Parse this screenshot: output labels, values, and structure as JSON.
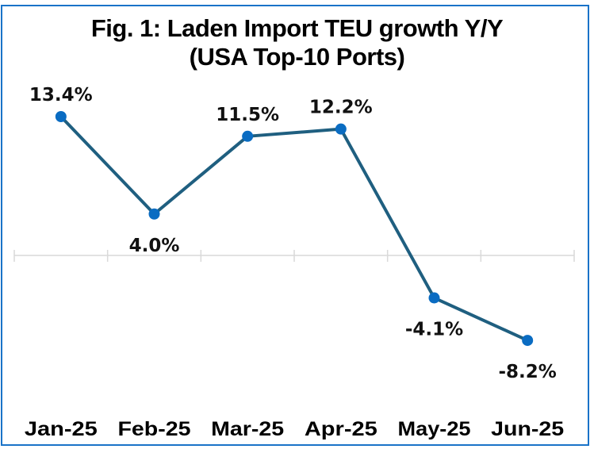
{
  "chart_data": {
    "type": "line",
    "title": "Fig. 1: Laden Import TEU growth Y/Y",
    "subtitle": "(USA Top-10 Ports)",
    "categories": [
      "Jan-25",
      "Feb-25",
      "Mar-25",
      "Apr-25",
      "May-25",
      "Jun-25"
    ],
    "series": [
      {
        "name": "Laden Import TEU growth Y/Y",
        "values": [
          13.4,
          4.0,
          11.5,
          12.2,
          -4.1,
          -8.2
        ],
        "labels": [
          "13.4%",
          "4.0%",
          "11.5%",
          "12.2%",
          "-4.1%",
          "-8.2%"
        ]
      }
    ],
    "label_positions": [
      "above",
      "below",
      "above",
      "above",
      "below",
      "below"
    ],
    "xlabel": "",
    "ylabel": "",
    "ylim": [
      -10,
      15
    ],
    "grid": false,
    "legend": "none",
    "colors": {
      "line": "#1f5f80",
      "marker": "#0a6cc2",
      "axis": "#d9d9d9",
      "border": "#1a73c8"
    }
  }
}
